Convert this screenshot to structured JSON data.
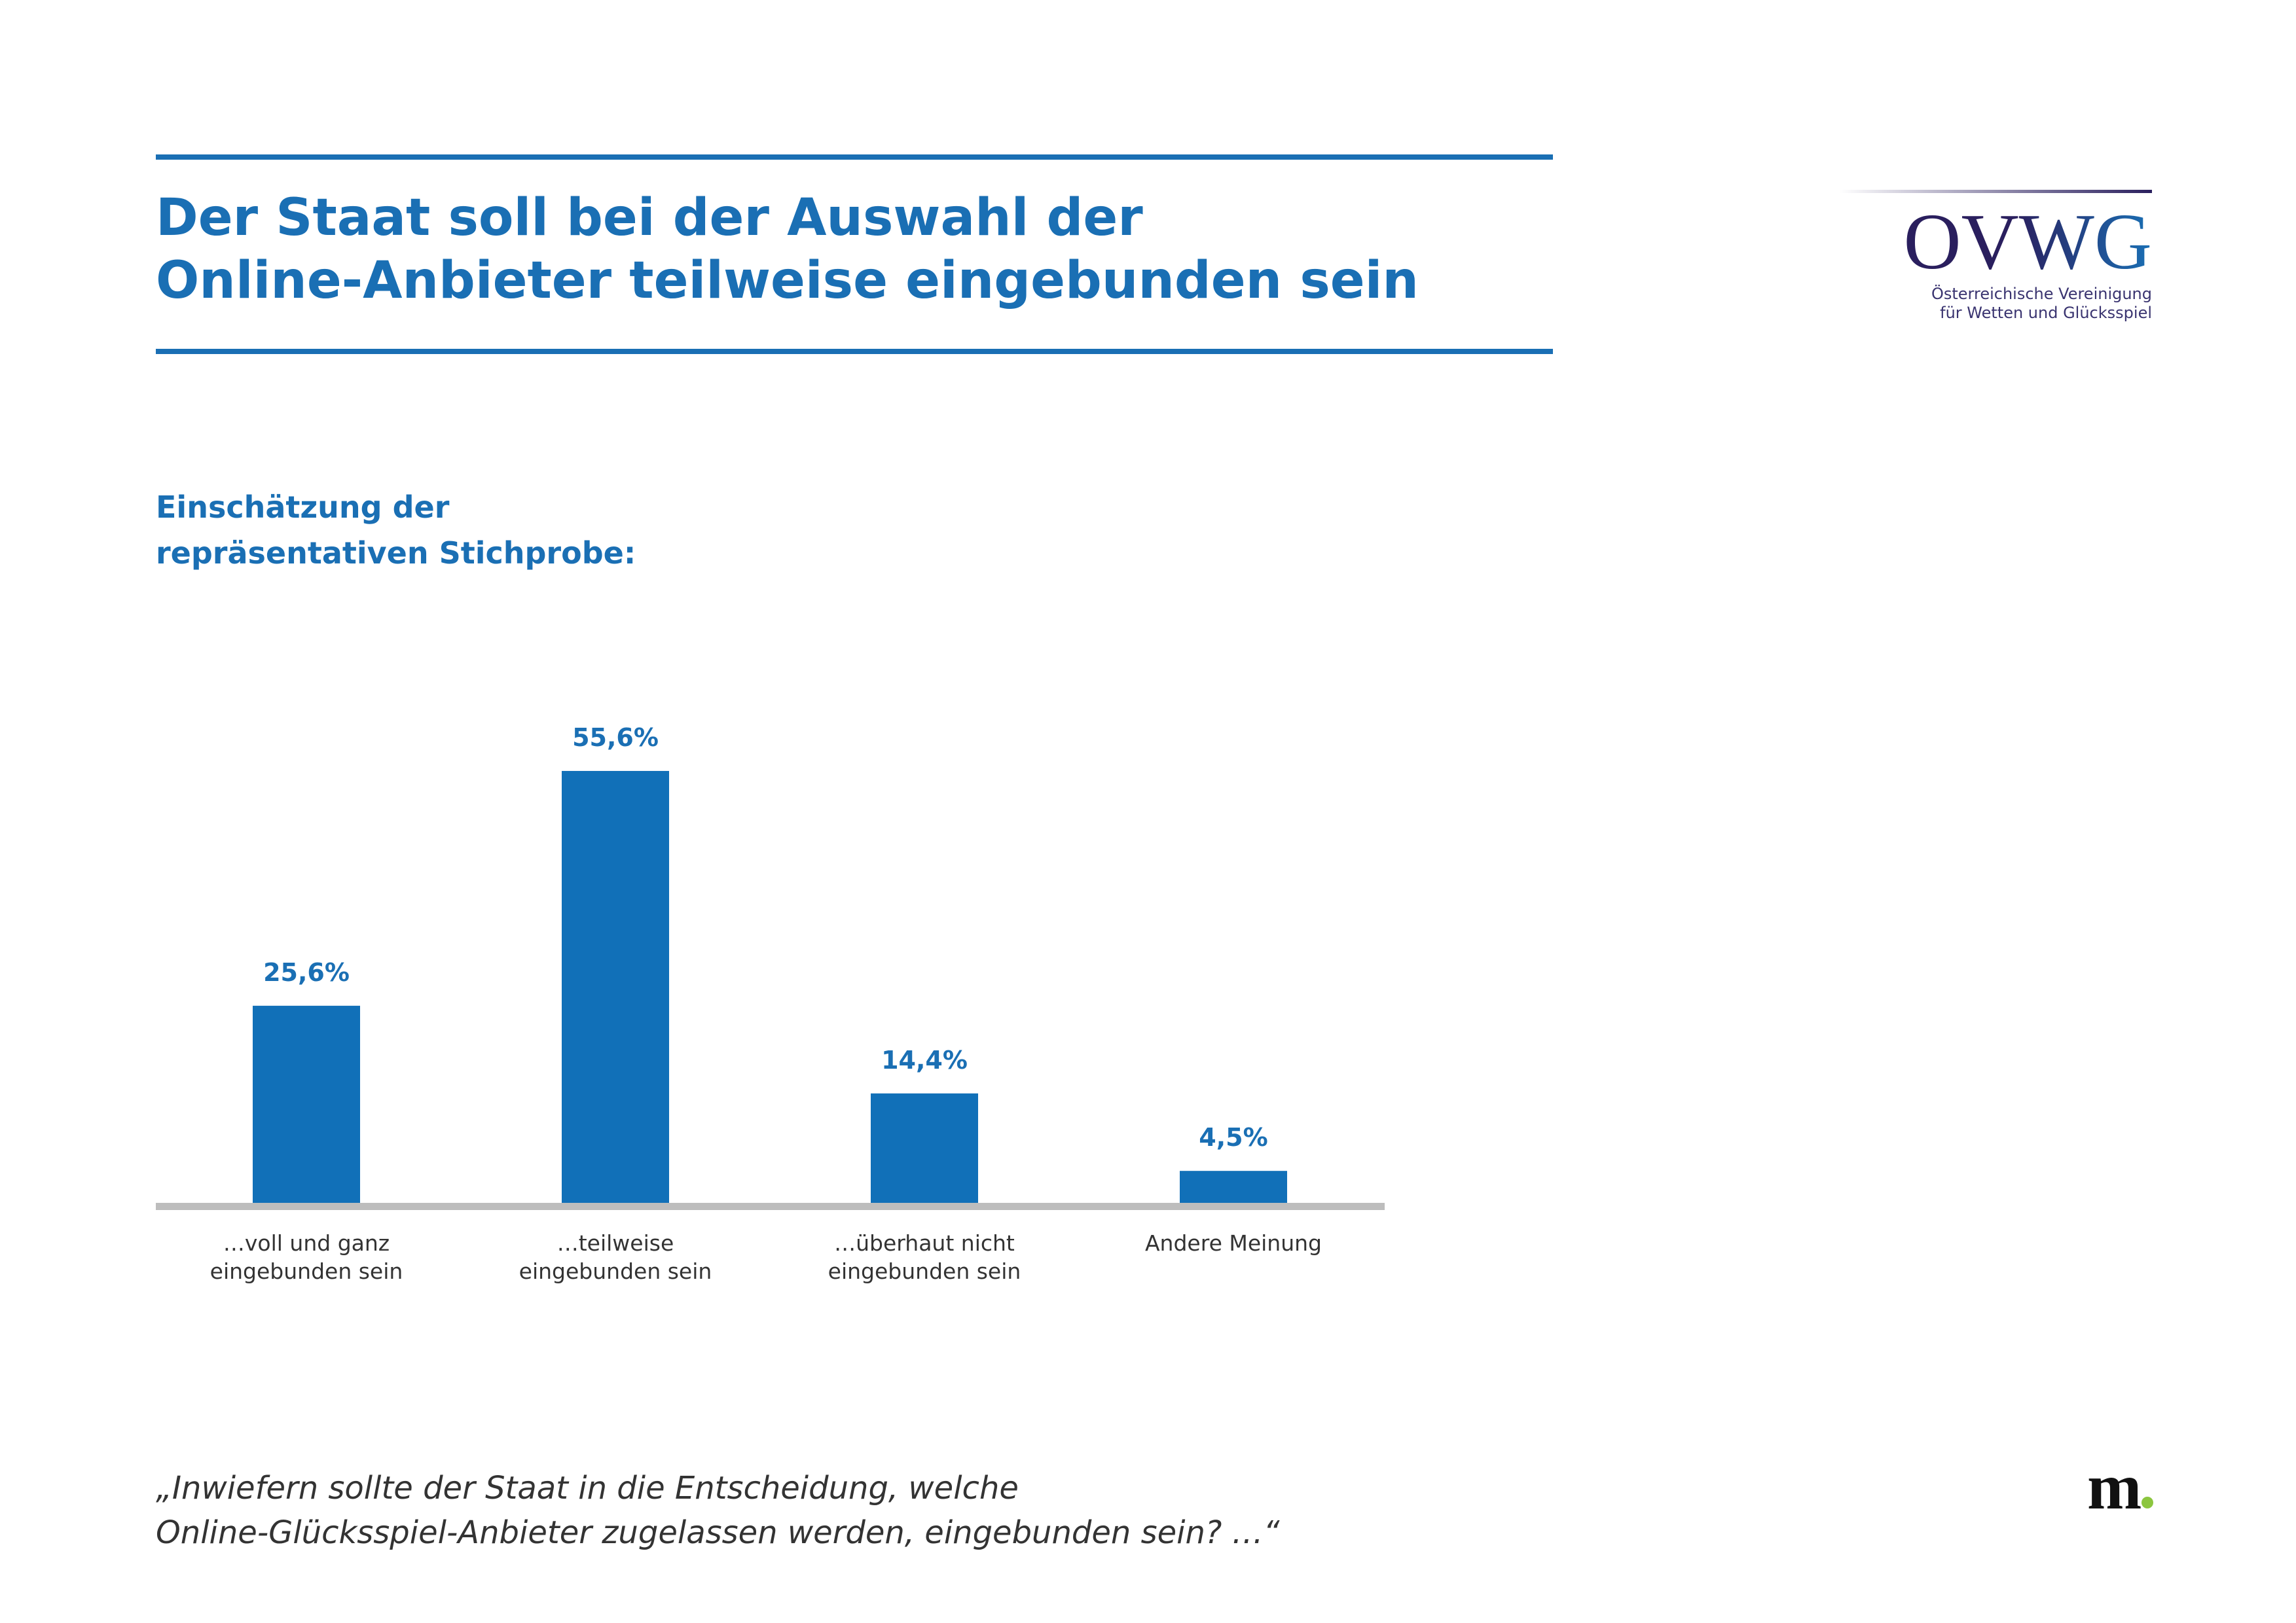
{
  "chart_data": {
    "type": "bar",
    "title": "Der Staat soll bei der Auswahl der\nOnline-Anbieter teilweise eingebunden sein",
    "subtitle": "Einschätzung der\nrepräsentativen Stichprobe:",
    "categories": [
      "…voll und ganz\neingebunden sein",
      "…teilweise\neingebunden sein",
      "…überhaut nicht\neingebunden sein",
      "Andere Meinung"
    ],
    "values": [
      25.6,
      55.6,
      14.4,
      4.5
    ],
    "value_labels": [
      "25,6%",
      "55,6%",
      "14,4%",
      "4,5%"
    ],
    "color": "#1170b8"
  },
  "logo": {
    "name": "OVWG",
    "tagline": "Österreichische Vereinigung\nfür Wetten und Glücksspiel"
  },
  "footnote": "„Inwiefern sollte der Staat in die Entscheidung, welche\nOnline-Glücksspiel-Anbieter zugelassen werden, eingebunden sein? …“",
  "brand": "m"
}
